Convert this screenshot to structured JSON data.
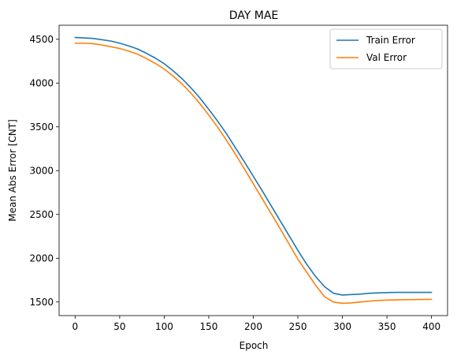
{
  "chart_data": {
    "type": "line",
    "title": "DAY MAE",
    "xlabel": "Epoch",
    "ylabel": "Mean Abs Error [CNT]",
    "xlim": [
      -18,
      418
    ],
    "ylim": [
      1345,
      4660
    ],
    "xticks": [
      0,
      50,
      100,
      150,
      200,
      250,
      300,
      350,
      400
    ],
    "yticks": [
      1500,
      2000,
      2500,
      3000,
      3500,
      4000,
      4500
    ],
    "grid": false,
    "legend_position": "top-right",
    "series": [
      {
        "name": "Train Error",
        "color": "#1f77b4",
        "x": [
          0,
          10,
          20,
          30,
          40,
          50,
          60,
          70,
          80,
          90,
          100,
          110,
          120,
          130,
          140,
          150,
          160,
          170,
          180,
          190,
          200,
          210,
          220,
          230,
          240,
          250,
          260,
          270,
          280,
          290,
          300,
          310,
          320,
          330,
          340,
          350,
          360,
          370,
          380,
          390,
          400
        ],
        "y": [
          4520,
          4515,
          4510,
          4495,
          4480,
          4455,
          4425,
          4390,
          4340,
          4285,
          4220,
          4140,
          4050,
          3945,
          3830,
          3700,
          3565,
          3420,
          3260,
          3100,
          2935,
          2770,
          2600,
          2430,
          2260,
          2090,
          1930,
          1790,
          1675,
          1600,
          1580,
          1585,
          1590,
          1600,
          1605,
          1608,
          1610,
          1610,
          1610,
          1610,
          1610
        ]
      },
      {
        "name": "Val Error",
        "color": "#ff7f0e",
        "x": [
          0,
          10,
          20,
          30,
          40,
          50,
          60,
          70,
          80,
          90,
          100,
          110,
          120,
          130,
          140,
          150,
          160,
          170,
          180,
          190,
          200,
          210,
          220,
          230,
          240,
          250,
          260,
          270,
          280,
          290,
          300,
          310,
          320,
          330,
          340,
          350,
          360,
          370,
          380,
          390,
          400
        ],
        "y": [
          4455,
          4455,
          4450,
          4435,
          4415,
          4395,
          4365,
          4330,
          4280,
          4225,
          4160,
          4080,
          3990,
          3885,
          3765,
          3635,
          3495,
          3345,
          3185,
          3020,
          2850,
          2680,
          2510,
          2340,
          2165,
          1990,
          1840,
          1690,
          1560,
          1500,
          1485,
          1490,
          1500,
          1510,
          1518,
          1522,
          1525,
          1527,
          1528,
          1529,
          1530
        ]
      }
    ]
  }
}
